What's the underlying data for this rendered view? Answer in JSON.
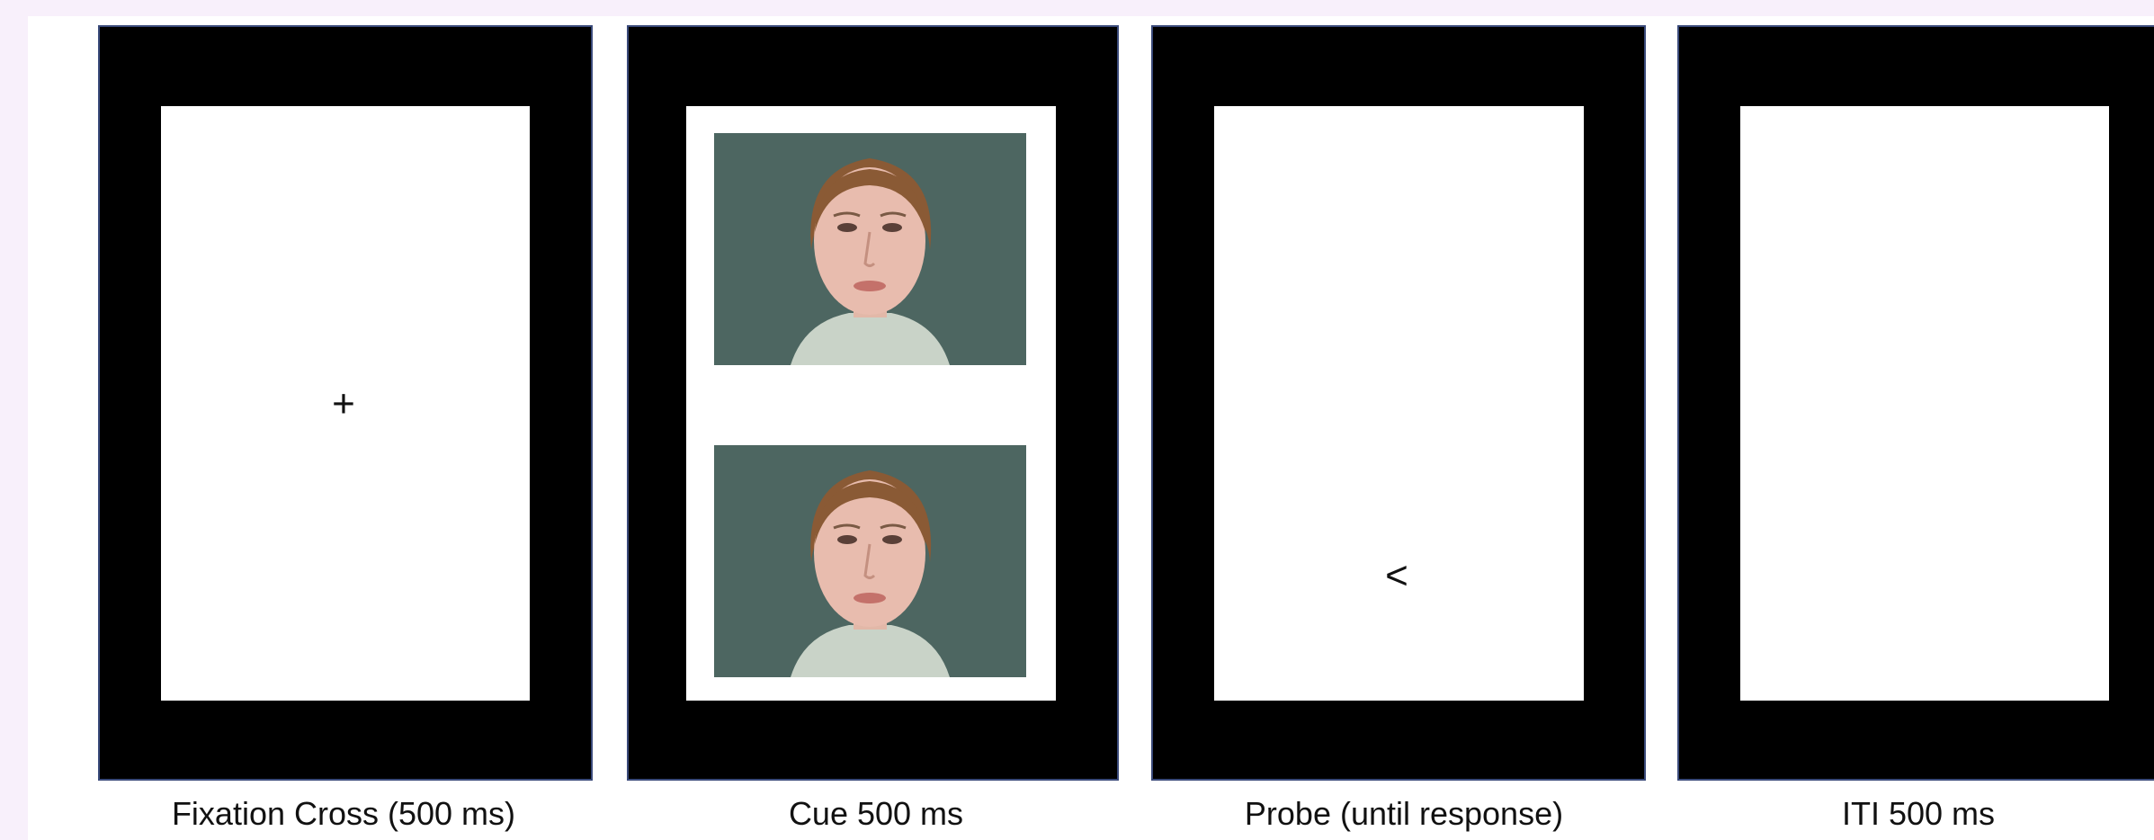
{
  "panels": [
    {
      "label": "Fixation Cross (500 ms)",
      "symbol": "+"
    },
    {
      "label": "Cue 500 ms"
    },
    {
      "label": "Probe (until response)",
      "symbol": "<"
    },
    {
      "label": "ITI 500 ms"
    }
  ]
}
